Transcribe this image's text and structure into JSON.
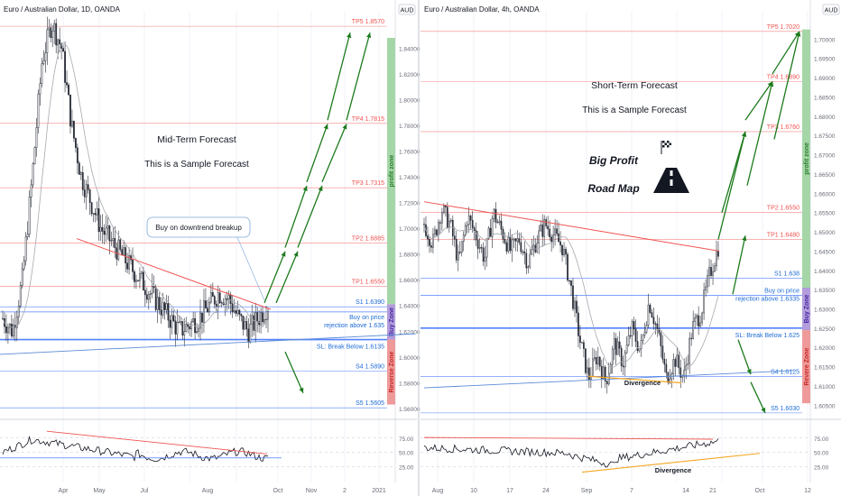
{
  "colors": {
    "grid": "#f0f3fa",
    "axis_text": "#6a6d78",
    "candle": "#2a2e39",
    "ma": "#a7a9b0",
    "trend": "#ef5350",
    "tp": "#ef5350",
    "support": "#2962ff",
    "support_text": "#1e6bd6",
    "arrow": "#1b7a1b",
    "profit_zone": "#a5d6a7",
    "buy_zone": "#b39ddb",
    "reverse_zone": "#ef9a9a",
    "osc": "#131722",
    "osc_trend": "#ef5350",
    "divergence": "#f5a623"
  },
  "left": {
    "title": "Euro / Australian Dollar, 1D, OANDA",
    "currency": "AUD",
    "headline": "Mid-Term Forecast",
    "sub": "This is a Sample Forecast",
    "callout": "Buy on downtrend breakup",
    "levels": {
      "tp5": "TP5 1.8570",
      "tp4": "TP4 1.7815",
      "tp3": "TP3 1.7315",
      "tp2": "TP2 1.6885",
      "tp1": "TP1 1.6550",
      "s1": "S1 1.6390",
      "buy1": "Buy on price",
      "buy2": "rejection above 1.635",
      "sl": "SL: Break Below 1.6135",
      "s4": "S4 1.5890",
      "s5": "S5 1.5605"
    },
    "zones": {
      "profit": "profit zone",
      "buy": "Buy Zone",
      "reverse": "Reverse Zone"
    },
    "y_ticks": [
      "1.84000",
      "1.82000",
      "1.80000",
      "1.78000",
      "1.76000",
      "1.74000",
      "1.72000",
      "1.70000",
      "1.68000",
      "1.66000",
      "1.64000",
      "1.62000",
      "1.60000",
      "1.58000",
      "1.56000"
    ],
    "x_ticks": [
      "Apr",
      "May",
      "Jul",
      "Aug",
      "Oct",
      "Nov",
      "2",
      "2021"
    ],
    "osc_ticks": [
      "75.00",
      "50.00",
      "25.00"
    ]
  },
  "right": {
    "title": "Euro / Australian Dollar, 4h, OANDA",
    "currency": "AUD",
    "headline": "Short-Term Forecast",
    "sub": "This is a Sample Forecast",
    "big1": "Big Profit",
    "big2": "Road Map",
    "levels": {
      "tp5": "TP5 1.7020",
      "tp4": "TP4 1.6890",
      "tp3": "TP3 1.6760",
      "tp2": "TP2 1.6550",
      "tp1": "TP1 1.6480",
      "s1": "S1 1.638",
      "buy1": "Buy on price",
      "buy2": "rejection above 1.6335",
      "sl": "SL: Break Below 1.625",
      "s4": "S4 1.6125",
      "s5": "S5 1.6030"
    },
    "zones": {
      "profit": "profit zone",
      "buy": "Buy Zone",
      "reverse": "Revere Zone"
    },
    "divergence": "Divergence",
    "osc_divergence": "Divergence",
    "y_ticks": [
      "1.70000",
      "1.69500",
      "1.69000",
      "1.68500",
      "1.68000",
      "1.67500",
      "1.67000",
      "1.66500",
      "1.66000",
      "1.65500",
      "1.65000",
      "1.64500",
      "1.64000",
      "1.63500",
      "1.63000",
      "1.62500",
      "1.62000",
      "1.61500",
      "1.61000",
      "1.60500"
    ],
    "x_ticks": [
      "Aug",
      "10",
      "17",
      "24",
      "Sep",
      "7",
      "14",
      "21",
      "Oct",
      "12"
    ],
    "osc_ticks": [
      "75.00",
      "50.00",
      "25.00"
    ]
  },
  "chart_data": [
    {
      "type": "candlestick",
      "title": "Euro / Australian Dollar, 1D, OANDA",
      "ylim": [
        1.555,
        1.862
      ],
      "approx_close_path": [
        1.63,
        1.62,
        1.66,
        1.74,
        1.83,
        1.86,
        1.84,
        1.78,
        1.74,
        1.72,
        1.7,
        1.69,
        1.68,
        1.67,
        1.66,
        1.65,
        1.64,
        1.63,
        1.62,
        1.625,
        1.63,
        1.64,
        1.65,
        1.645,
        1.63,
        1.62,
        1.63,
        1.64
      ],
      "levels": {
        "TP5": 1.857,
        "TP4": 1.7815,
        "TP3": 1.7315,
        "TP2": 1.6885,
        "TP1": 1.655,
        "S1": 1.639,
        "Buy": 1.635,
        "SL": 1.6135,
        "S4": 1.589,
        "S5": 1.5605
      }
    },
    {
      "type": "candlestick",
      "title": "Euro / Australian Dollar, 4h, OANDA",
      "ylim": [
        1.6025,
        1.705
      ],
      "approx_close_path": [
        1.652,
        1.647,
        1.656,
        1.652,
        1.642,
        1.654,
        1.649,
        1.643,
        1.655,
        1.65,
        1.645,
        1.648,
        1.642,
        1.648,
        1.652,
        1.649,
        1.646,
        1.635,
        1.622,
        1.612,
        1.618,
        1.611,
        1.621,
        1.616,
        1.625,
        1.619,
        1.632,
        1.624,
        1.612,
        1.617,
        1.612,
        1.625,
        1.629,
        1.639,
        1.646
      ],
      "levels": {
        "TP5": 1.702,
        "TP4": 1.689,
        "TP3": 1.676,
        "TP2": 1.655,
        "TP1": 1.648,
        "S1": 1.638,
        "Buy": 1.6335,
        "SL": 1.625,
        "S4": 1.6125,
        "S5": 1.603
      }
    }
  ]
}
